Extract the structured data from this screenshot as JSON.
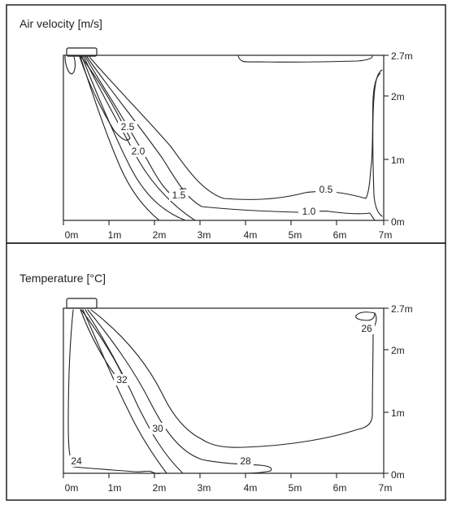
{
  "panels": [
    {
      "id": "velocity",
      "title": "Air velocity [m/s]",
      "x_ticks": [
        "0m",
        "1m",
        "2m",
        "3m",
        "4m",
        "5m",
        "6m",
        "7m"
      ],
      "y_ticks": [
        "2.7m",
        "2m",
        "1m",
        "0m"
      ],
      "contour_labels": [
        "2.5",
        "2.0",
        "1.5",
        "1.0",
        "0.5"
      ]
    },
    {
      "id": "temperature",
      "title": "Temperature [°C]",
      "x_ticks": [
        "0m",
        "1m",
        "2m",
        "3m",
        "4m",
        "5m",
        "6m",
        "7m"
      ],
      "y_ticks": [
        "2.7m",
        "2m",
        "1m",
        "0m"
      ],
      "contour_labels": [
        "26",
        "32",
        "30",
        "28",
        "24"
      ]
    }
  ],
  "colors": {
    "line": "#222222",
    "background": "#ffffff",
    "frame": "#111111"
  }
}
